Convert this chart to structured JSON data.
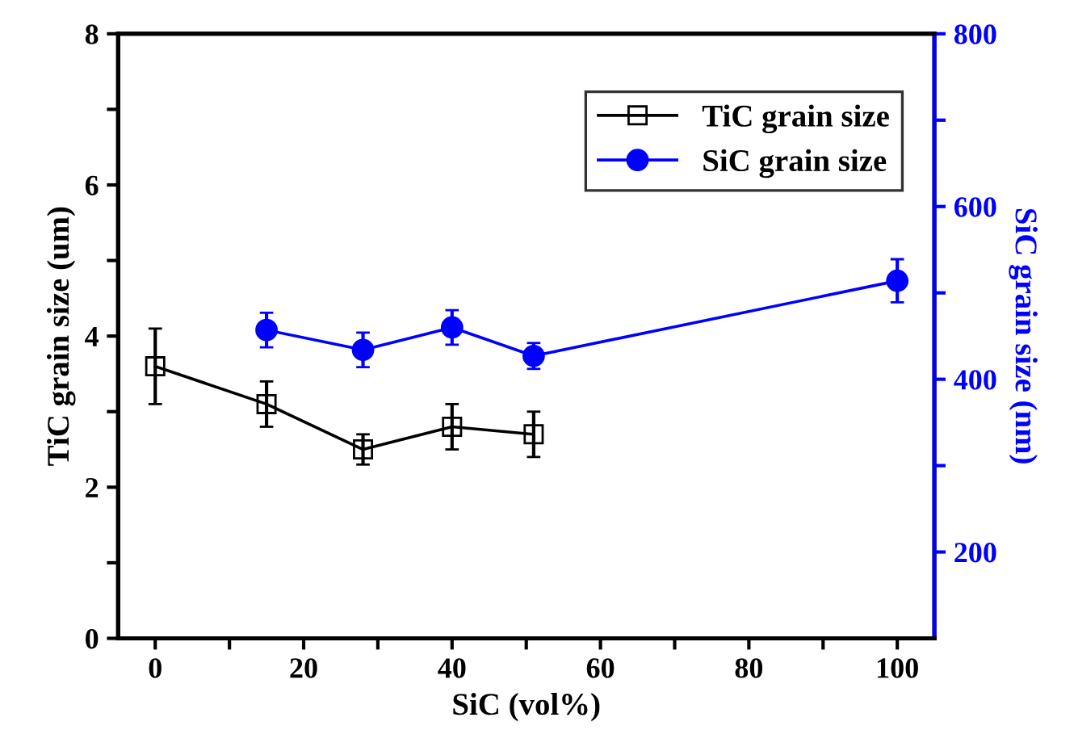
{
  "chart_data": {
    "type": "line",
    "xlabel": "SiC (vol%)",
    "ylabel": "TiC grain size (um)",
    "y2label": "SiC grain size (nm)",
    "xlim": [
      -5,
      105
    ],
    "xticks": [
      0,
      {
        "value": 10,
        "label": null
      },
      20,
      {
        "value": 30,
        "label": null
      },
      40,
      {
        "value": 50,
        "label": null
      },
      60,
      {
        "value": 70,
        "label": null
      },
      80,
      {
        "value": 90,
        "label": null
      },
      100
    ],
    "ylim": [
      0,
      8
    ],
    "yticks": [
      0,
      {
        "value": 1,
        "label": null
      },
      2,
      {
        "value": 3,
        "label": null
      },
      4,
      {
        "value": 5,
        "label": null
      },
      6,
      {
        "value": 7,
        "label": null
      },
      8
    ],
    "y2lim": [
      100,
      800
    ],
    "y2ticks": [
      200,
      {
        "value": 300,
        "label": null
      },
      400,
      {
        "value": 500,
        "label": null
      },
      600,
      {
        "value": 700,
        "label": null
      },
      800
    ],
    "legend": "top right",
    "grid": false,
    "line_style": "solid",
    "series": [
      {
        "name": "TiC grain size",
        "color": "#000000",
        "marker": "square",
        "x": [
          0,
          15,
          28,
          40,
          51
        ],
        "values": [
          3.6,
          3.1,
          2.5,
          2.8,
          2.7
        ],
        "errors": [
          0.5,
          0.3,
          0.2,
          0.3,
          0.3
        ]
      },
      {
        "name": "SiC grain size",
        "color": "#0000ff",
        "marker": "circle",
        "axis": "y2",
        "x": [
          15,
          28,
          40,
          51,
          100
        ],
        "values": [
          457,
          434,
          460,
          427,
          514
        ],
        "errors": [
          20,
          20,
          20,
          15,
          25
        ]
      }
    ]
  }
}
